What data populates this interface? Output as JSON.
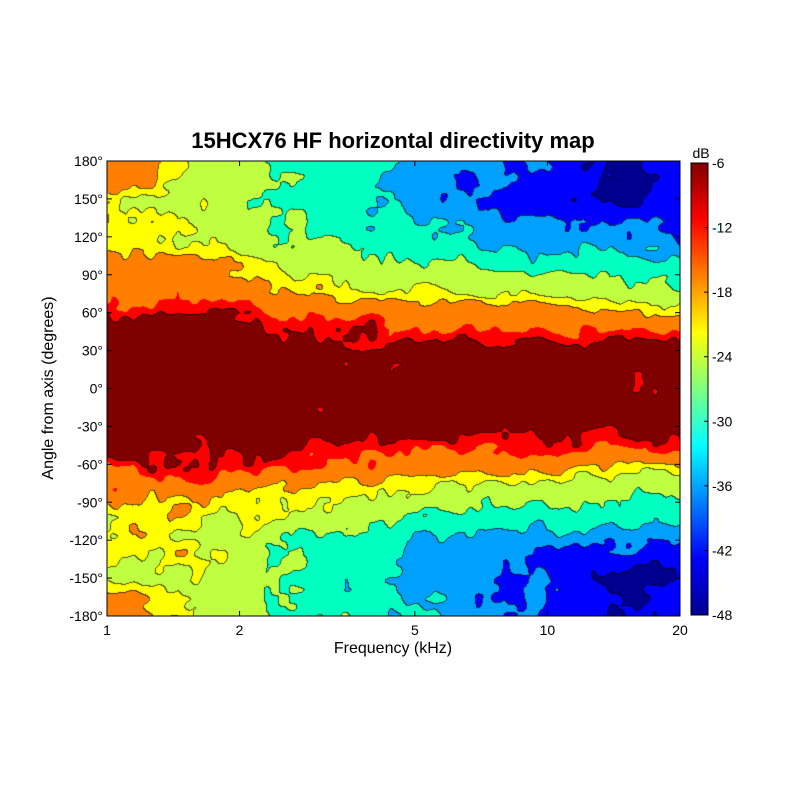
{
  "chart_data": {
    "type": "heatmap",
    "title": "15HCX76 HF horizontal directivity map",
    "xlabel": "Frequency (kHz)",
    "ylabel": "Angle from axis (degrees)",
    "x_scale": "log",
    "xlim": [
      1,
      20
    ],
    "ylim": [
      -180,
      180
    ],
    "x_ticks": [
      1,
      2,
      5,
      10,
      20
    ],
    "x_tick_labels": [
      "1",
      "2",
      "5",
      "10",
      "20"
    ],
    "y_ticks": [
      180,
      150,
      120,
      90,
      60,
      30,
      0,
      -30,
      -60,
      -90,
      -120,
      -150,
      -180
    ],
    "y_tick_labels": [
      "180°",
      "150°",
      "120°",
      "90°",
      "60°",
      "30°",
      "0°",
      "-30°",
      "-60°",
      "-90°",
      "-120°",
      "-150°",
      "-180°"
    ],
    "colorbar": {
      "label": "dB",
      "range": [
        -48,
        -6
      ],
      "ticks": [
        -6,
        -12,
        -18,
        -24,
        -30,
        -36,
        -42,
        -48
      ],
      "tick_labels": [
        "-6",
        "-12",
        "-18",
        "-24",
        "-30",
        "-36",
        "-42",
        "-48"
      ],
      "colormap": "jet"
    },
    "contour_step_db": 6,
    "z_grid": {
      "units": "dB",
      "frequencies_khz": [
        1,
        1.5,
        2,
        3,
        5,
        7,
        10,
        14,
        20
      ],
      "angles_deg": [
        0,
        30,
        45,
        60,
        75,
        90,
        120,
        150,
        180
      ],
      "values": [
        [
          -6,
          -6,
          -6,
          -6,
          -6,
          -6,
          -6,
          -6,
          -6
        ],
        [
          -6,
          -6,
          -6,
          -6,
          -6,
          -6,
          -6,
          -6,
          -7
        ],
        [
          -6,
          -6,
          -7,
          -9,
          -10,
          -11,
          -11,
          -12,
          -12
        ],
        [
          -10,
          -9,
          -10,
          -12,
          -14,
          -16,
          -17,
          -18,
          -18
        ],
        [
          -14,
          -13,
          -15,
          -18,
          -21,
          -22,
          -23,
          -24,
          -24
        ],
        [
          -17,
          -17,
          -19,
          -22,
          -25,
          -26,
          -27,
          -28,
          -28
        ],
        [
          -20,
          -20,
          -24,
          -28,
          -32,
          -34,
          -36,
          -38,
          -38
        ],
        [
          -19,
          -22,
          -25,
          -29,
          -35,
          -38,
          -40,
          -44,
          -42
        ],
        [
          -12,
          -20,
          -25,
          -28,
          -33,
          -37,
          -38,
          -44,
          -40
        ]
      ]
    }
  }
}
